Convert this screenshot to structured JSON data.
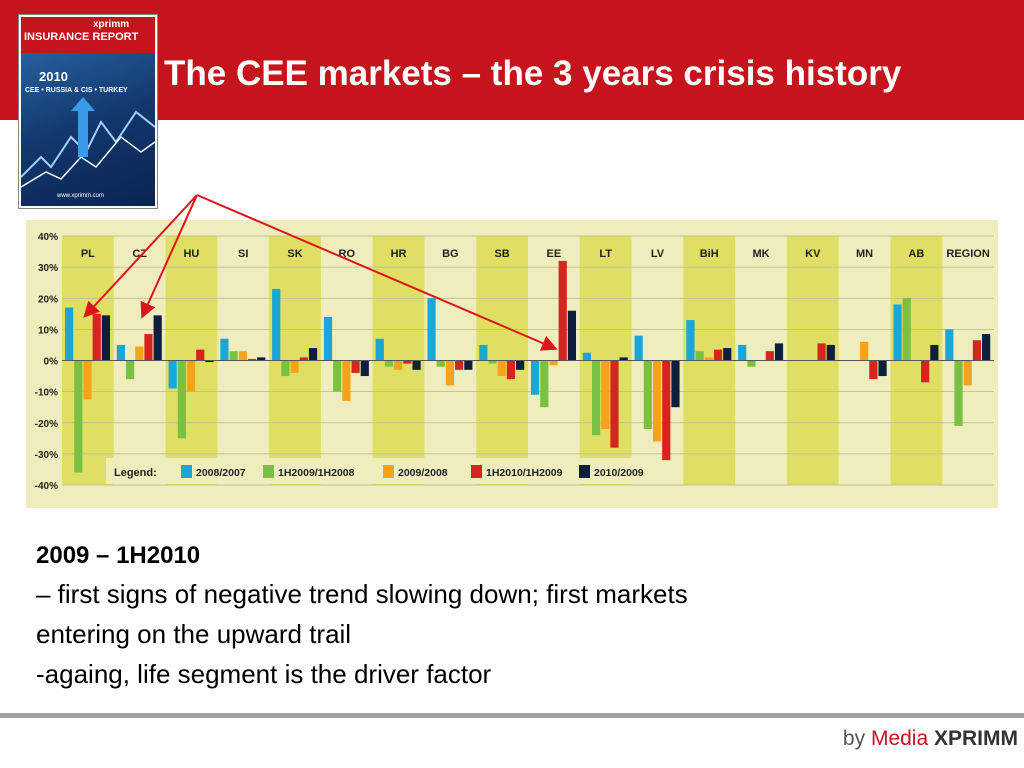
{
  "slide": {
    "title": "The CEE markets – the 3 years crisis history",
    "cover": {
      "brand": "xprimm",
      "name": "INSURANCE REPORT",
      "year": "2010",
      "regions": "CEE • RUSSIA & CIS • TURKEY",
      "url": "www.xprimm.com"
    },
    "body": {
      "heading": "2009 – 1H2010",
      "line1": "– first signs of negative trend slowing down; first markets",
      "line2": "entering on the upward trail",
      "line3": "-againg, life segment is the driver factor"
    },
    "footer": {
      "by": "by",
      "media": "Media",
      "brand": "XPRIMM"
    }
  },
  "colors": {
    "header": "#c5141b",
    "chart_background": "#efecbd",
    "column_highlight": "#dfe063",
    "annotation_arrow": "#e0121b"
  },
  "chart_data": {
    "type": "bar",
    "ylim": [
      -40,
      40
    ],
    "yticks": [
      40,
      30,
      20,
      10,
      0,
      -10,
      -20,
      -30,
      -40
    ],
    "ytick_labels": [
      "40%",
      "30%",
      "20%",
      "10%",
      "0%",
      "-10%",
      "-20%",
      "-30%",
      "-40%"
    ],
    "categories": [
      "PL",
      "CZ",
      "HU",
      "SI",
      "SK",
      "RO",
      "HR",
      "BG",
      "SB",
      "EE",
      "LT",
      "LV",
      "BiH",
      "MK",
      "KV",
      "MN",
      "AB",
      "REGION"
    ],
    "legend_title": "Legend:",
    "series": [
      {
        "name": "2008/2007",
        "color": "#1aa7d6",
        "values": [
          17,
          5,
          -9,
          7,
          23,
          14,
          7,
          20,
          5,
          -11,
          2.5,
          8,
          13,
          5,
          null,
          null,
          18,
          10
        ]
      },
      {
        "name": "1H2009/1H2008",
        "color": "#7ac143",
        "values": [
          -36,
          -6,
          -25,
          3,
          -5,
          -10,
          -2,
          -2,
          -1,
          -15,
          -24,
          -22,
          3,
          -2,
          null,
          null,
          20,
          -21
        ]
      },
      {
        "name": "2009/2008",
        "color": "#f7a21b",
        "values": [
          -12.5,
          4.5,
          -10,
          3,
          -4,
          -13,
          -3,
          -8,
          -5,
          -1.5,
          -22,
          -26,
          1,
          null,
          null,
          6,
          null,
          -8
        ]
      },
      {
        "name": "1H2010/1H2009",
        "color": "#d8241f",
        "values": [
          15,
          8.5,
          3.5,
          0.5,
          1,
          -4,
          -1,
          -3,
          -6,
          32,
          -28,
          -32,
          3.5,
          3,
          5.5,
          -6,
          -7,
          6.5
        ]
      },
      {
        "name": "2010/2009",
        "color": "#0d1f3c",
        "values": [
          14.5,
          14.5,
          -0.5,
          1,
          4,
          -5,
          -3,
          -3,
          -3,
          16,
          1,
          -15,
          4,
          5.5,
          5,
          -5,
          5,
          8.5
        ]
      }
    ]
  }
}
